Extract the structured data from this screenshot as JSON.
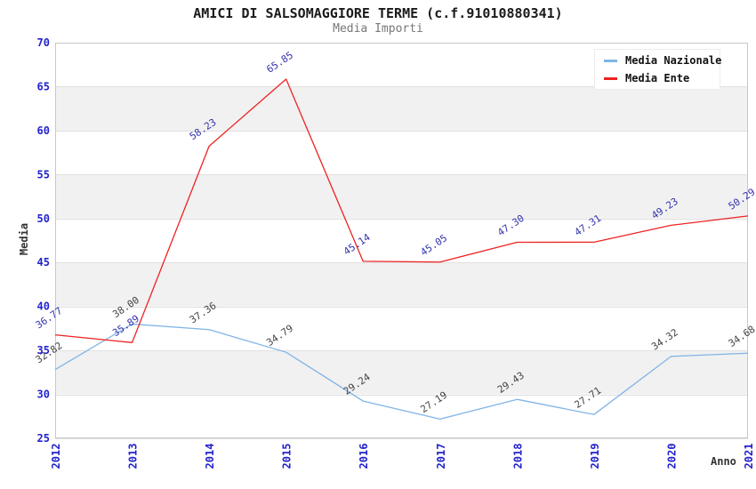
{
  "title": "AMICI DI SALSOMAGGIORE TERME (c.f.91010880341)",
  "subtitle": "Media Importi",
  "chart_data": {
    "type": "line",
    "categories": [
      "2012",
      "2013",
      "2014",
      "2015",
      "2016",
      "2017",
      "2018",
      "2019",
      "2020",
      "2021"
    ],
    "series": [
      {
        "name": "Media Nazionale",
        "color": "#82b4e6",
        "label_color": "#444444",
        "values": [
          32.82,
          38.0,
          37.36,
          34.79,
          29.24,
          27.19,
          29.43,
          27.71,
          34.32,
          34.68
        ]
      },
      {
        "name": "Media Ente",
        "color": "#ee2222",
        "label_color": "#3434ad",
        "values": [
          36.77,
          35.89,
          58.23,
          65.85,
          45.14,
          45.05,
          47.3,
          47.31,
          49.23,
          50.29
        ]
      }
    ],
    "title": "AMICI DI SALSOMAGGIORE TERME (c.f.91010880341)",
    "subtitle": "Media Importi",
    "xlabel": "Anno",
    "ylabel": "Media",
    "ylim": [
      25,
      70
    ],
    "yticks": [
      25,
      30,
      35,
      40,
      45,
      50,
      55,
      60,
      65,
      70
    ],
    "grid": "horizontal gridlines with alternating shaded bands",
    "legend_position": "top-right",
    "point_labels": "every point labeled with value, 2 decimals, rotated"
  },
  "colors": {
    "axis_tick_label": "#2222cc",
    "band_alt_fill": "#f1f1f1",
    "grid_line": "#e0e0e0",
    "plot_border": "#c8c8c8",
    "title_text": "#1a1a1a",
    "subtitle_text": "#777777",
    "axis_title_text": "#333333"
  }
}
